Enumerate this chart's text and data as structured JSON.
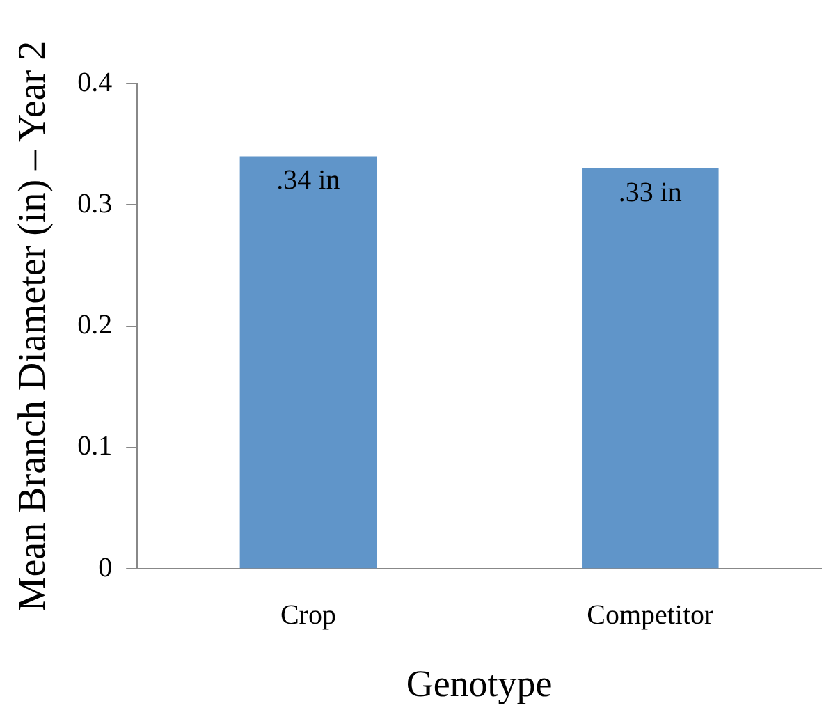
{
  "chart_data": {
    "type": "bar",
    "xlabel": "Genotype",
    "ylabel": "Mean Branch Diameter (in) – Year 2",
    "categories": [
      "Crop",
      "Competitor"
    ],
    "values": [
      0.34,
      0.33
    ],
    "value_labels": [
      ".34 in",
      ".33 in"
    ],
    "color": "#6095c9",
    "ylim": [
      0,
      0.4
    ],
    "yticks": [
      0,
      0.1,
      0.2,
      0.3,
      0.4
    ],
    "grid": false
  }
}
